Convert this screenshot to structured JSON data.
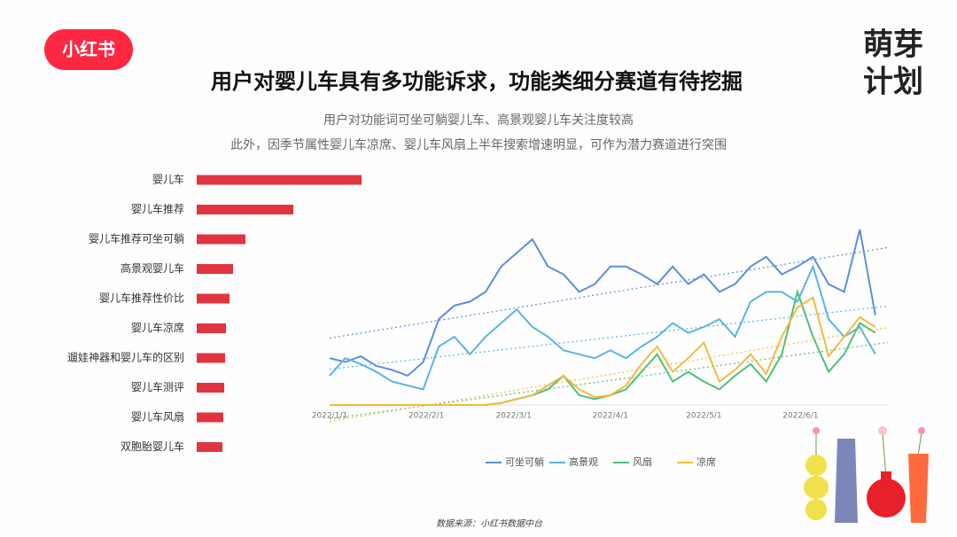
{
  "header": {
    "logo": "小红书",
    "title": "用户对婴儿车具有多功能诉求，功能类细分赛道有待挖掘",
    "subtitles": [
      "用户对功能词可坐可躺婴儿车、高景观婴儿车关注度较高",
      "此外，因季节属性婴儿车凉席、婴儿车风扇上半年搜索增速明显，可作为潜力赛道进行突围"
    ],
    "brand": [
      "萌芽",
      "计划"
    ]
  },
  "source": "数据来源：小红书数据中台",
  "chart_data": [
    {
      "type": "hbar",
      "categories": [
        "婴儿车",
        "婴儿车推荐",
        "婴儿车推荐可坐可躺",
        "高景观婴儿车",
        "婴儿车推荐性价比",
        "婴儿车凉席",
        "遛娃神器和婴儿车的区别",
        "婴儿车测评",
        "婴儿车风扇",
        "双胞胎婴儿车"
      ],
      "values": [
        186,
        109,
        55,
        41,
        37,
        33,
        32,
        31,
        30,
        29
      ],
      "color": "#e0353f",
      "xlim": [
        0,
        200
      ]
    },
    {
      "type": "line",
      "x": [
        "2022/1/1",
        "2022/1/6",
        "2022/1/11",
        "2022/1/16",
        "2022/1/21",
        "2022/1/26",
        "2022/1/31",
        "2022/2/5",
        "2022/2/10",
        "2022/2/15",
        "2022/2/20",
        "2022/2/25",
        "2022/3/2",
        "2022/3/7",
        "2022/3/12",
        "2022/3/17",
        "2022/3/22",
        "2022/3/27",
        "2022/4/1",
        "2022/4/6",
        "2022/4/11",
        "2022/4/16",
        "2022/4/21",
        "2022/4/26",
        "2022/5/1",
        "2022/5/6",
        "2022/5/11",
        "2022/5/16",
        "2022/5/21",
        "2022/5/26",
        "2022/5/31",
        "2022/6/5",
        "2022/6/10",
        "2022/6/15",
        "2022/6/20",
        "2022/6/25"
      ],
      "xlim": [
        "2022/1/1",
        "2022/6/29"
      ],
      "xticks": [
        "2022/1/1",
        "2022/2/1",
        "2022/3/1",
        "2022/4/1",
        "2022/5/1",
        "2022/6/1"
      ],
      "ylim": [
        0,
        100
      ],
      "trendline": true,
      "series": [
        {
          "name": "可坐可躺",
          "color": "#5b8fd9",
          "values": [
            24,
            22,
            25,
            20,
            18,
            15,
            22,
            44,
            51,
            53,
            58,
            71,
            78,
            85,
            71,
            67,
            58,
            62,
            71,
            71,
            67,
            62,
            71,
            62,
            67,
            58,
            62,
            71,
            76,
            67,
            71,
            76,
            62,
            58,
            90,
            46
          ]
        },
        {
          "name": "高景观",
          "color": "#5ab4e5",
          "values": [
            15,
            24,
            21,
            17,
            12,
            10,
            8,
            30,
            35,
            26,
            35,
            42,
            49,
            40,
            35,
            28,
            26,
            24,
            28,
            24,
            30,
            35,
            42,
            37,
            40,
            44,
            35,
            53,
            58,
            58,
            53,
            71,
            44,
            35,
            40,
            26
          ]
        },
        {
          "name": "风扇",
          "color": "#4fbf7a",
          "values": [
            0,
            0,
            0,
            0,
            0,
            0,
            0,
            0,
            0,
            0,
            0,
            1,
            3,
            5,
            8,
            15,
            5,
            3,
            5,
            8,
            17,
            26,
            12,
            17,
            12,
            8,
            15,
            21,
            12,
            26,
            58,
            35,
            17,
            26,
            42,
            37
          ]
        },
        {
          "name": "凉席",
          "color": "#f5b942",
          "values": [
            0,
            0,
            0,
            0,
            0,
            0,
            0,
            0,
            0,
            0,
            0,
            1,
            3,
            5,
            10,
            15,
            8,
            4,
            5,
            10,
            21,
            30,
            17,
            24,
            32,
            12,
            18,
            26,
            16,
            35,
            50,
            55,
            25,
            35,
            45,
            40
          ]
        }
      ]
    }
  ]
}
